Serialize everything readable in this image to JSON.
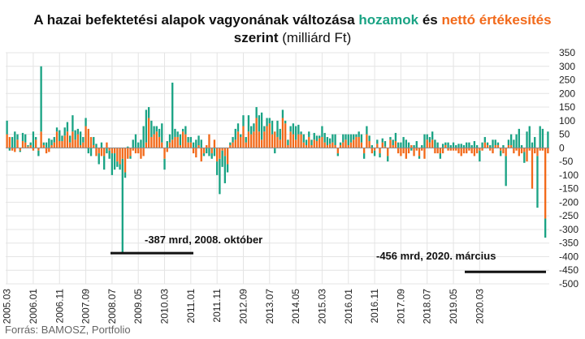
{
  "title": {
    "part1": "A hazai befektetési alapok vagyonának változása",
    "returns_word": "hozamok",
    "and_word": "és",
    "sales_word": "nettó értékesítés",
    "by_word": "szerint",
    "unit": "(milliárd Ft)"
  },
  "source": "Forrás: BAMOSZ, Portfolio",
  "colors": {
    "returns": "#1aa384",
    "net_sales": "#f26a1b",
    "text": "#111111",
    "grid": "#dddddd"
  },
  "chart_data": {
    "type": "bar",
    "stacked": true,
    "y_axis_position": "right",
    "ylim": [
      -500,
      350
    ],
    "yticks": [
      350,
      300,
      250,
      200,
      150,
      100,
      50,
      0,
      -50,
      -100,
      -150,
      -200,
      -250,
      -300,
      -350,
      -400,
      -450,
      -500
    ],
    "x_tick_labels": [
      "2005.03",
      "2006.01",
      "2006.11",
      "2007.09",
      "2008.07",
      "2009.05",
      "2010.03",
      "2011.01",
      "2011.11",
      "2012.09",
      "2013.07",
      "2014.05",
      "2015.03",
      "2016.01",
      "2016.11",
      "2017.09",
      "2018.07",
      "2019.05",
      "2020.03"
    ],
    "grid": "vertical and horizontal",
    "series": [
      {
        "name": "hozamok",
        "color": "#1aa384",
        "values": [
          50,
          -10,
          40,
          60,
          20,
          -5,
          30,
          30,
          5,
          10,
          60,
          10,
          -20,
          240,
          10,
          20,
          35,
          20,
          20,
          15,
          40,
          20,
          30,
          35,
          25,
          60,
          35,
          20,
          50,
          20,
          30,
          -20,
          -30,
          30,
          15,
          -40,
          20,
          -50,
          -20,
          -30,
          -80,
          -60,
          -20,
          -20,
          -345,
          -20,
          5,
          -10,
          30,
          50,
          20,
          30,
          80,
          120,
          40,
          60,
          30,
          20,
          30,
          70,
          -40,
          25,
          30,
          210,
          30,
          20,
          40,
          10,
          30,
          20,
          20,
          20,
          30,
          35,
          30,
          -10,
          -20,
          -30,
          -20,
          -30,
          -50,
          -130,
          -60,
          -100,
          -30,
          10,
          20,
          40,
          30,
          10,
          40,
          20,
          60,
          30,
          30,
          40,
          60,
          100,
          20,
          30,
          20,
          50,
          -20,
          60,
          40,
          30,
          10,
          20,
          20,
          40,
          50,
          35,
          10,
          30,
          20,
          20,
          20,
          25,
          20,
          10,
          40,
          35,
          30,
          20,
          30,
          40,
          -10,
          10,
          30,
          20,
          40,
          30,
          20,
          10,
          20,
          30,
          -20,
          30,
          20,
          10,
          -20,
          15,
          -15,
          15,
          20,
          -20,
          10,
          20,
          30,
          20,
          20,
          40,
          30,
          20,
          -10,
          10,
          25,
          -10,
          10,
          50,
          20,
          20,
          30,
          30,
          20,
          -20,
          15,
          10,
          20,
          10,
          20,
          10,
          15,
          15,
          10,
          20,
          20,
          10,
          25,
          10,
          -40,
          20,
          20,
          10,
          10,
          30,
          20,
          10,
          -20,
          10,
          -110,
          20,
          40,
          30,
          50,
          70,
          10,
          -40,
          60,
          80,
          20,
          40,
          -190,
          80,
          70,
          -70,
          60
        ]
      },
      {
        "name": "nettó értékesítés",
        "color": "#f26a1b",
        "values": [
          50,
          40,
          -10,
          -15,
          30,
          -10,
          25,
          20,
          5,
          10,
          -10,
          30,
          -10,
          60,
          10,
          -20,
          -15,
          10,
          20,
          60,
          25,
          25,
          45,
          60,
          20,
          60,
          30,
          50,
          10,
          20,
          80,
          70,
          40,
          10,
          -30,
          -20,
          -30,
          -30,
          20,
          -10,
          -20,
          -20,
          -50,
          -60,
          -40,
          -90,
          -40,
          -30,
          -10,
          -20,
          -20,
          -40,
          -30,
          20,
          110,
          40,
          50,
          60,
          40,
          20,
          -40,
          -15,
          20,
          30,
          40,
          40,
          10,
          60,
          50,
          20,
          20,
          -20,
          -35,
          10,
          -50,
          -20,
          10,
          50,
          -20,
          30,
          -50,
          -40,
          -10,
          -30,
          -60,
          10,
          20,
          30,
          60,
          40,
          80,
          20,
          60,
          50,
          60,
          110,
          60,
          30,
          60,
          80,
          90,
          50,
          60,
          40,
          30,
          110,
          90,
          10,
          60,
          50,
          30,
          50,
          50,
          20,
          10,
          40,
          10,
          30,
          25,
          35,
          40,
          20,
          10,
          15,
          20,
          10,
          -20,
          10,
          20,
          30,
          10,
          20,
          30,
          40,
          40,
          20,
          -20,
          50,
          25,
          -20,
          -10,
          15,
          -20,
          20,
          5,
          -30,
          30,
          10,
          25,
          -20,
          -30,
          -20,
          -40,
          -20,
          10,
          -30,
          -10,
          -30,
          -10,
          -40,
          30,
          20,
          30,
          -20,
          -20,
          -20,
          -20,
          10,
          -10,
          -10,
          -10,
          -10,
          -20,
          -30,
          -20,
          -20,
          -10,
          -20,
          -30,
          -20,
          -10,
          -10,
          20,
          10,
          -10,
          -20,
          10,
          10,
          -10,
          -20,
          -30,
          10,
          10,
          -20,
          -10,
          -30,
          -20,
          -15,
          -50,
          -10,
          -150,
          -20,
          -30,
          -10,
          -10,
          -260,
          -20,
          -20,
          -50,
          -30
        ]
      }
    ],
    "annotations": [
      {
        "text": "-387 mrd, 2008. október",
        "x": "2008.10",
        "y": -387
      },
      {
        "text": "-456 mrd, 2020. március",
        "x": "2020.03",
        "y": -456
      }
    ]
  }
}
